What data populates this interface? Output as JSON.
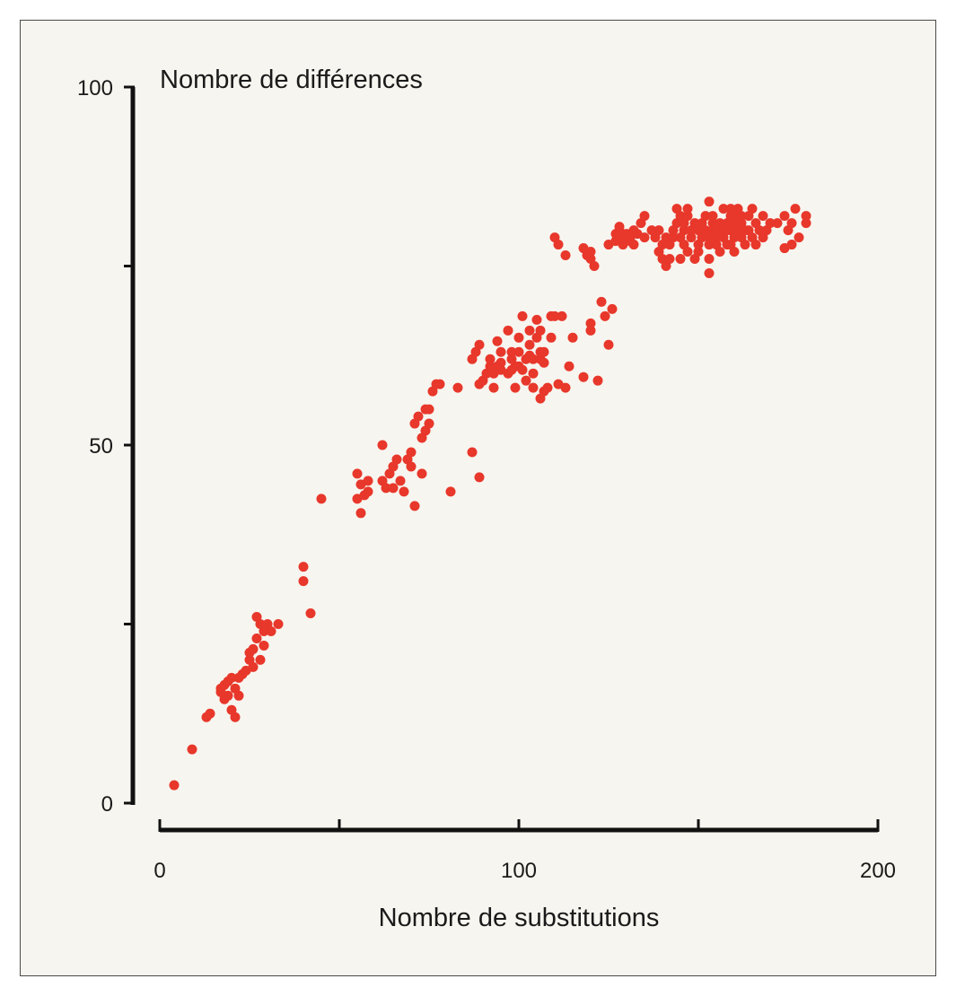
{
  "chart_data": {
    "type": "scatter",
    "title": "",
    "xlabel": "Nombre de substitutions",
    "ylabel": "Nombre de différences",
    "xlim": [
      0,
      200
    ],
    "ylim": [
      0,
      100
    ],
    "x_ticks": [
      0,
      50,
      100,
      150,
      200
    ],
    "y_ticks": [
      0,
      25,
      50,
      75,
      100
    ],
    "x_tick_labels": [
      "0",
      "",
      "100",
      "",
      "200"
    ],
    "y_tick_labels": [
      "0",
      "",
      "50",
      "",
      "100"
    ],
    "grid": false,
    "legend": "none",
    "point_color": "#e8372b",
    "axis_color": "#111111",
    "background": "#f7f5ef",
    "points": [
      [
        4,
        2.5
      ],
      [
        9,
        7.5
      ],
      [
        13,
        12
      ],
      [
        14,
        12.5
      ],
      [
        17,
        15.5
      ],
      [
        17,
        16
      ],
      [
        18,
        16.5
      ],
      [
        18,
        14.5
      ],
      [
        19,
        15
      ],
      [
        19,
        17
      ],
      [
        20,
        17.5
      ],
      [
        20,
        13
      ],
      [
        21,
        12
      ],
      [
        21,
        16
      ],
      [
        22,
        15
      ],
      [
        22,
        17.5
      ],
      [
        23,
        18
      ],
      [
        24,
        18.5
      ],
      [
        25,
        20
      ],
      [
        25,
        21
      ],
      [
        26,
        19
      ],
      [
        26,
        21.5
      ],
      [
        27,
        23
      ],
      [
        27,
        26
      ],
      [
        28,
        25
      ],
      [
        28,
        20
      ],
      [
        29,
        22
      ],
      [
        29,
        24
      ],
      [
        30,
        25
      ],
      [
        31,
        24
      ],
      [
        33,
        25
      ],
      [
        40,
        33
      ],
      [
        40,
        31
      ],
      [
        42,
        26.5
      ],
      [
        45,
        42.5
      ],
      [
        55,
        42.5
      ],
      [
        55,
        46
      ],
      [
        56,
        40.5
      ],
      [
        56,
        44.5
      ],
      [
        57,
        43
      ],
      [
        58,
        43.5
      ],
      [
        58,
        45
      ],
      [
        62,
        45
      ],
      [
        62,
        50
      ],
      [
        63,
        44
      ],
      [
        64,
        46
      ],
      [
        65,
        47
      ],
      [
        65,
        44
      ],
      [
        66,
        48
      ],
      [
        67,
        45
      ],
      [
        68,
        43.5
      ],
      [
        69,
        48
      ],
      [
        70,
        47
      ],
      [
        70,
        49
      ],
      [
        71,
        53
      ],
      [
        71,
        41.5
      ],
      [
        72,
        54
      ],
      [
        73,
        46
      ],
      [
        73,
        51
      ],
      [
        74,
        52
      ],
      [
        74,
        55
      ],
      [
        75,
        55
      ],
      [
        75,
        53
      ],
      [
        76,
        57.5
      ],
      [
        77,
        58.5
      ],
      [
        78,
        58.5
      ],
      [
        81,
        43.5
      ],
      [
        83,
        58
      ],
      [
        87,
        62
      ],
      [
        87,
        49
      ],
      [
        88,
        63
      ],
      [
        89,
        64
      ],
      [
        89,
        58.5
      ],
      [
        89,
        45.5
      ],
      [
        90,
        59
      ],
      [
        91,
        60
      ],
      [
        92,
        61
      ],
      [
        92,
        62
      ],
      [
        93,
        60
      ],
      [
        93,
        58
      ],
      [
        94,
        61
      ],
      [
        94,
        64.5
      ],
      [
        95,
        63
      ],
      [
        95,
        60.5
      ],
      [
        95,
        61.5
      ],
      [
        97,
        66
      ],
      [
        97,
        60
      ],
      [
        98,
        62
      ],
      [
        98,
        63
      ],
      [
        98,
        60.5
      ],
      [
        99,
        61
      ],
      [
        99,
        58
      ],
      [
        100,
        65
      ],
      [
        100,
        63
      ],
      [
        100,
        61
      ],
      [
        101,
        68
      ],
      [
        101,
        60.5
      ],
      [
        102,
        62
      ],
      [
        102,
        59
      ],
      [
        103,
        64
      ],
      [
        103,
        66
      ],
      [
        103,
        62.5
      ],
      [
        104,
        60
      ],
      [
        104,
        58
      ],
      [
        104,
        62
      ],
      [
        105,
        65
      ],
      [
        105,
        67.5
      ],
      [
        106,
        66
      ],
      [
        106,
        62
      ],
      [
        106,
        63
      ],
      [
        106,
        56.5
      ],
      [
        107,
        57.5
      ],
      [
        107,
        61.5
      ],
      [
        107,
        63
      ],
      [
        108,
        58
      ],
      [
        109,
        68
      ],
      [
        109,
        65
      ],
      [
        110,
        68
      ],
      [
        111,
        58.5
      ],
      [
        112,
        68
      ],
      [
        113,
        58
      ],
      [
        114,
        61
      ],
      [
        115,
        65
      ],
      [
        118,
        59.5
      ],
      [
        120,
        67
      ],
      [
        120,
        66
      ],
      [
        122,
        59
      ],
      [
        123,
        70
      ],
      [
        124,
        68
      ],
      [
        125,
        64
      ],
      [
        126,
        69
      ],
      [
        110,
        79
      ],
      [
        111,
        78
      ],
      [
        113,
        76.5
      ],
      [
        118,
        77.5
      ],
      [
        119,
        76.5
      ],
      [
        120,
        76
      ],
      [
        120,
        77
      ],
      [
        121,
        75
      ],
      [
        125,
        78
      ],
      [
        127,
        78.5
      ],
      [
        127,
        79.5
      ],
      [
        128,
        80
      ],
      [
        128,
        80.5
      ],
      [
        129,
        78
      ],
      [
        129,
        79
      ],
      [
        130,
        79.5
      ],
      [
        131,
        79
      ],
      [
        131,
        78.5
      ],
      [
        132,
        80
      ],
      [
        132,
        78
      ],
      [
        133,
        79.5
      ],
      [
        134,
        81
      ],
      [
        135,
        82
      ],
      [
        135,
        79
      ],
      [
        137,
        80
      ],
      [
        138,
        79
      ],
      [
        139,
        80
      ],
      [
        139,
        77
      ],
      [
        140,
        76
      ],
      [
        140,
        78
      ],
      [
        141,
        79
      ],
      [
        141,
        75
      ],
      [
        142,
        76
      ],
      [
        142,
        78
      ],
      [
        143,
        79
      ],
      [
        143,
        80
      ],
      [
        144,
        81
      ],
      [
        144,
        83
      ],
      [
        145,
        82
      ],
      [
        145,
        79
      ],
      [
        145,
        76
      ],
      [
        146,
        78
      ],
      [
        146,
        80
      ],
      [
        146,
        81
      ],
      [
        147,
        82
      ],
      [
        147,
        83
      ],
      [
        147,
        77
      ],
      [
        148,
        79
      ],
      [
        148,
        80
      ],
      [
        149,
        81
      ],
      [
        149,
        76
      ],
      [
        150,
        77
      ],
      [
        150,
        78
      ],
      [
        150,
        80
      ],
      [
        151,
        79
      ],
      [
        151,
        81
      ],
      [
        152,
        82
      ],
      [
        152,
        80
      ],
      [
        153,
        84
      ],
      [
        153,
        79
      ],
      [
        153,
        78
      ],
      [
        153,
        76
      ],
      [
        153,
        74
      ],
      [
        154,
        80
      ],
      [
        154,
        81
      ],
      [
        154,
        82
      ],
      [
        155,
        79
      ],
      [
        155,
        78
      ],
      [
        156,
        80
      ],
      [
        156,
        81
      ],
      [
        156,
        77
      ],
      [
        157,
        83
      ],
      [
        157,
        80
      ],
      [
        157,
        79
      ],
      [
        158,
        78
      ],
      [
        158,
        81
      ],
      [
        158,
        80
      ],
      [
        159,
        82
      ],
      [
        159,
        80
      ],
      [
        159,
        83
      ],
      [
        159,
        78
      ],
      [
        160,
        79
      ],
      [
        160,
        81
      ],
      [
        160,
        82
      ],
      [
        160,
        77
      ],
      [
        161,
        80
      ],
      [
        161,
        83
      ],
      [
        162,
        81
      ],
      [
        162,
        79
      ],
      [
        162,
        82
      ],
      [
        163,
        80
      ],
      [
        163,
        78
      ],
      [
        164,
        82
      ],
      [
        164,
        80
      ],
      [
        165,
        79
      ],
      [
        165,
        83
      ],
      [
        166,
        78
      ],
      [
        166,
        81
      ],
      [
        167,
        80
      ],
      [
        168,
        82
      ],
      [
        168,
        79
      ],
      [
        169,
        80
      ],
      [
        170,
        81
      ],
      [
        172,
        81
      ],
      [
        174,
        82
      ],
      [
        175,
        80
      ],
      [
        176,
        81
      ],
      [
        177,
        83
      ],
      [
        174,
        77.5
      ],
      [
        176,
        78
      ],
      [
        178,
        79
      ],
      [
        180,
        81
      ],
      [
        180,
        82
      ]
    ]
  }
}
